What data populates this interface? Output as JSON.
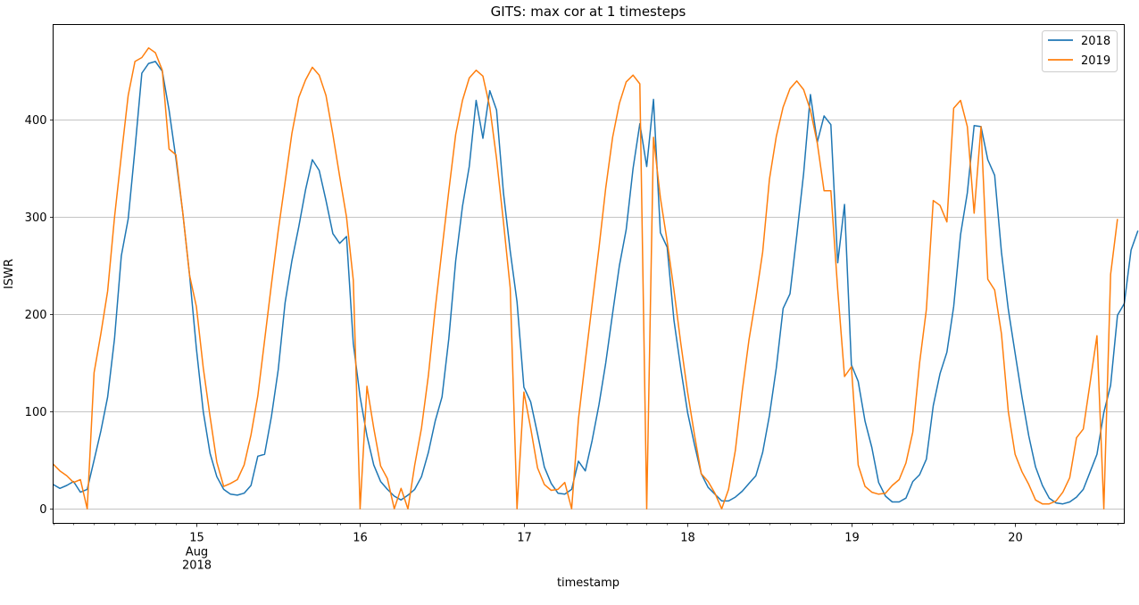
{
  "chart_data": {
    "type": "line",
    "title": "GITS: max cor at 1 timesteps",
    "xlabel": "timestamp",
    "ylabel": "ISWR",
    "xlim": [
      "2018-08-14 03:00",
      "2018-08-20 16:00"
    ],
    "ylim": [
      -15,
      498
    ],
    "yticks": [
      0,
      100,
      200,
      300,
      400
    ],
    "xticks": [
      {
        "at": "2018-08-15 00:00",
        "label": "15",
        "sub": [
          "Aug",
          "2018"
        ]
      },
      {
        "at": "2018-08-16 00:00",
        "label": "16"
      },
      {
        "at": "2018-08-17 00:00",
        "label": "17"
      },
      {
        "at": "2018-08-18 00:00",
        "label": "18"
      },
      {
        "at": "2018-08-19 00:00",
        "label": "19"
      },
      {
        "at": "2018-08-20 00:00",
        "label": "20"
      }
    ],
    "grid": "horizontal",
    "legend": "top-right",
    "x_start": "2018-08-14 03:00",
    "x_step_hours": 1,
    "series": [
      {
        "name": "2018",
        "color": "#1f77b4",
        "values": [
          25,
          21,
          24,
          28,
          17,
          20,
          50,
          80,
          115,
          175,
          260,
          298,
          370,
          448,
          458,
          460,
          450,
          410,
          360,
          305,
          240,
          165,
          100,
          57,
          33,
          20,
          15,
          14,
          16,
          24,
          54,
          56,
          95,
          143,
          212,
          255,
          290,
          328,
          359,
          348,
          317,
          283,
          273,
          280,
          170,
          115,
          75,
          45,
          28,
          20,
          13,
          9,
          14,
          20,
          33,
          58,
          90,
          115,
          175,
          255,
          311,
          352,
          420,
          381,
          430,
          410,
          325,
          265,
          213,
          125,
          110,
          77,
          43,
          26,
          16,
          15,
          20,
          49,
          39,
          70,
          107,
          150,
          201,
          250,
          287,
          350,
          396,
          352,
          421,
          284,
          269,
          194,
          144,
          99,
          66,
          36,
          22,
          15,
          8,
          8,
          12,
          18,
          26,
          34,
          58,
          96,
          145,
          206,
          221,
          281,
          345,
          426,
          377,
          404,
          395,
          253,
          313,
          148,
          131,
          90,
          63,
          27,
          13,
          7,
          7,
          11,
          28,
          35,
          51,
          106,
          139,
          161,
          208,
          282,
          325,
          394,
          393,
          359,
          343,
          264,
          205,
          160,
          115,
          75,
          43,
          24,
          11,
          6,
          5,
          7,
          12,
          20,
          38,
          56,
          99,
          127,
          199,
          211,
          266,
          286
        ]
      },
      {
        "name": "2019",
        "color": "#ff7f0e",
        "values": [
          46,
          39,
          34,
          27,
          30,
          0,
          140,
          180,
          224,
          300,
          363,
          425,
          460,
          464,
          474,
          469,
          451,
          370,
          364,
          305,
          240,
          208,
          145,
          95,
          48,
          23,
          26,
          30,
          45,
          76,
          116,
          173,
          231,
          286,
          336,
          386,
          423,
          441,
          454,
          446,
          425,
          385,
          342,
          300,
          235,
          0,
          126,
          83,
          44,
          31,
          0,
          21,
          0,
          45,
          83,
          137,
          205,
          267,
          327,
          385,
          420,
          443,
          451,
          445,
          413,
          360,
          295,
          227,
          0,
          120,
          83,
          42,
          25,
          19,
          20,
          27,
          0,
          92,
          152,
          210,
          268,
          330,
          382,
          417,
          439,
          446,
          437,
          0,
          382,
          320,
          275,
          225,
          170,
          120,
          76,
          36,
          28,
          16,
          0,
          20,
          60,
          121,
          174,
          217,
          264,
          339,
          383,
          413,
          432,
          440,
          431,
          410,
          376,
          327,
          327,
          225,
          136,
          146,
          45,
          23,
          17,
          15,
          16,
          24,
          30,
          47,
          79,
          150,
          205,
          317,
          312,
          295,
          412,
          420,
          393,
          304,
          393,
          236,
          225,
          180,
          100,
          56,
          38,
          25,
          9,
          5,
          5,
          8,
          17,
          32,
          73,
          82,
          130,
          178,
          0,
          241,
          298
        ]
      }
    ]
  }
}
